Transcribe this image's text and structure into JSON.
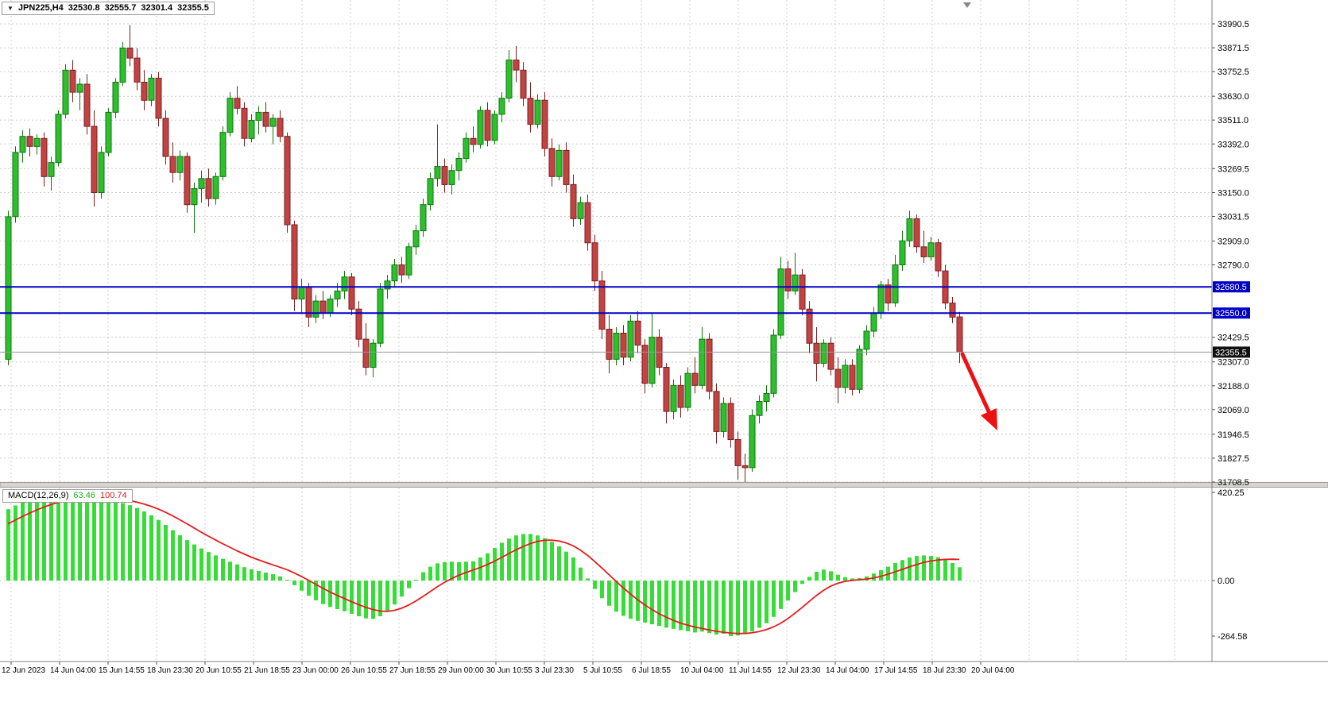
{
  "symbol_info": {
    "expander_icon": "▼",
    "symbol_tf": "JPN225,H4",
    "open": "32530.8",
    "high": "32555.7",
    "low": "32301.4",
    "close": "32355.5"
  },
  "macd_label": {
    "name": "MACD(12,26,9)",
    "main_value": "63.46",
    "signal_value": "100.74"
  },
  "price_axis": {
    "labels": [
      {
        "text": "33990.5",
        "value": 33990.5,
        "style": "normal"
      },
      {
        "text": "33871.5",
        "value": 33871.5,
        "style": "normal"
      },
      {
        "text": "33752.5",
        "value": 33752.5,
        "style": "normal"
      },
      {
        "text": "33630.0",
        "value": 33630.0,
        "style": "normal"
      },
      {
        "text": "33511.0",
        "value": 33511.0,
        "style": "normal"
      },
      {
        "text": "33392.0",
        "value": 33392.0,
        "style": "normal"
      },
      {
        "text": "33269.5",
        "value": 33269.5,
        "style": "normal"
      },
      {
        "text": "33150.0",
        "value": 33150.0,
        "style": "normal"
      },
      {
        "text": "33031.5",
        "value": 33031.5,
        "style": "normal"
      },
      {
        "text": "32909.0",
        "value": 32909.0,
        "style": "normal"
      },
      {
        "text": "32790.0",
        "value": 32790.0,
        "style": "normal"
      },
      {
        "text": "32680.5",
        "value": 32680.5,
        "style": "level"
      },
      {
        "text": "32550.0",
        "value": 32550.0,
        "style": "level"
      },
      {
        "text": "32429.5",
        "value": 32429.5,
        "style": "normal"
      },
      {
        "text": "32307.0",
        "value": 32307.0,
        "style": "normal"
      },
      {
        "text": "32188.0",
        "value": 32188.0,
        "style": "normal"
      },
      {
        "text": "32069.0",
        "value": 32069.0,
        "style": "normal"
      },
      {
        "text": "31946.5",
        "value": 31946.5,
        "style": "normal"
      },
      {
        "text": "31827.5",
        "value": 31827.5,
        "style": "normal"
      },
      {
        "text": "31708.5",
        "value": 31708.5,
        "style": "normal"
      }
    ],
    "bid_tag": {
      "text": "32355.5",
      "value": 32355.5,
      "style": "bid"
    }
  },
  "macd_axis": {
    "labels": [
      {
        "text": "420.25",
        "value": 420.25
      },
      {
        "text": "0.00",
        "value": 0
      },
      {
        "text": "-264.58",
        "value": -264.58
      }
    ]
  },
  "colors": {
    "background": "#ffffff",
    "grid": "#cccccc",
    "up_fill": "#2ebe2e",
    "up_stroke": "#0c780c",
    "down_fill": "#c24343",
    "down_stroke": "#7c1f1f",
    "macd_histogram": "#37dd37",
    "macd_signal": "#e51c1c",
    "level_line": "#0000c8",
    "bid_line": "#9a9a9a",
    "tag_level_bg": "#0000c8",
    "tag_bid_bg": "#111111",
    "arrow": "#ee1111",
    "separator": "#d8d5d0",
    "axis_border": "#808080"
  },
  "chart_data": {
    "type": "candlestick",
    "symbol": "JPN225",
    "timeframe": "H4",
    "title": "JPN225,H4",
    "ylim": [
      31708.5,
      33990.5
    ],
    "grid": true,
    "levels": [
      {
        "name": "resistance",
        "price": 32680.5
      },
      {
        "name": "support",
        "price": 32550.0
      }
    ],
    "current_price": 32355.5,
    "x_labels": [
      "12 Jun 2023",
      "14 Jun 04:00",
      "15 Jun 14:55",
      "18 Jun 23:30",
      "20 Jun 10:55",
      "21 Jun 18:55",
      "23 Jun 00:00",
      "26 Jun 10:55",
      "27 Jun 18:55",
      "29 Jun 00:00",
      "30 Jun 10:55",
      "3 Jul 23:30",
      "5 Jul 10:55",
      "6 Jul 18:55",
      "10 Jul 04:00",
      "11 Jul 14:55",
      "12 Jul 23:30",
      "14 Jul 04:00",
      "17 Jul 14:55",
      "18 Jul 23:30",
      "20 Jul 04:00"
    ],
    "ohlc": [
      [
        32320,
        33060,
        32290,
        33030
      ],
      [
        33030,
        33380,
        33000,
        33350
      ],
      [
        33350,
        33460,
        33300,
        33430
      ],
      [
        33430,
        33470,
        33330,
        33380
      ],
      [
        33380,
        33440,
        33340,
        33420
      ],
      [
        33420,
        33450,
        33180,
        33230
      ],
      [
        33230,
        33330,
        33160,
        33300
      ],
      [
        33300,
        33560,
        33280,
        33540
      ],
      [
        33540,
        33790,
        33520,
        33760
      ],
      [
        33760,
        33810,
        33600,
        33650
      ],
      [
        33650,
        33720,
        33560,
        33690
      ],
      [
        33690,
        33740,
        33440,
        33480
      ],
      [
        33480,
        33560,
        33080,
        33150
      ],
      [
        33150,
        33380,
        33120,
        33350
      ],
      [
        33350,
        33570,
        33330,
        33550
      ],
      [
        33550,
        33720,
        33520,
        33700
      ],
      [
        33700,
        33900,
        33680,
        33870
      ],
      [
        33870,
        33985,
        33780,
        33820
      ],
      [
        33820,
        33870,
        33660,
        33700
      ],
      [
        33700,
        33760,
        33560,
        33610
      ],
      [
        33610,
        33740,
        33580,
        33720
      ],
      [
        33720,
        33750,
        33480,
        33520
      ],
      [
        33520,
        33560,
        33290,
        33330
      ],
      [
        33330,
        33400,
        33200,
        33250
      ],
      [
        33250,
        33360,
        33210,
        33330
      ],
      [
        33330,
        33350,
        33050,
        33090
      ],
      [
        33090,
        33200,
        32950,
        33170
      ],
      [
        33170,
        33260,
        33100,
        33220
      ],
      [
        33220,
        33270,
        33080,
        33120
      ],
      [
        33120,
        33250,
        33090,
        33230
      ],
      [
        33230,
        33480,
        33210,
        33450
      ],
      [
        33450,
        33650,
        33430,
        33620
      ],
      [
        33620,
        33680,
        33540,
        33570
      ],
      [
        33570,
        33600,
        33380,
        33420
      ],
      [
        33420,
        33540,
        33400,
        33510
      ],
      [
        33510,
        33580,
        33440,
        33550
      ],
      [
        33550,
        33600,
        33450,
        33480
      ],
      [
        33480,
        33540,
        33390,
        33520
      ],
      [
        33520,
        33560,
        33400,
        33430
      ],
      [
        33430,
        33450,
        32950,
        32990
      ],
      [
        32990,
        33010,
        32560,
        32620
      ],
      [
        32620,
        32720,
        32550,
        32680
      ],
      [
        32680,
        32700,
        32480,
        32530
      ],
      [
        32530,
        32640,
        32500,
        32610
      ],
      [
        32610,
        32660,
        32520,
        32550
      ],
      [
        32550,
        32640,
        32530,
        32620
      ],
      [
        32620,
        32700,
        32580,
        32660
      ],
      [
        32660,
        32760,
        32620,
        32730
      ],
      [
        32730,
        32750,
        32540,
        32570
      ],
      [
        32570,
        32610,
        32380,
        32420
      ],
      [
        32420,
        32500,
        32240,
        32280
      ],
      [
        32280,
        32420,
        32230,
        32400
      ],
      [
        32400,
        32700,
        32380,
        32670
      ],
      [
        32670,
        32740,
        32620,
        32710
      ],
      [
        32710,
        32820,
        32680,
        32790
      ],
      [
        32790,
        32830,
        32700,
        32740
      ],
      [
        32740,
        32900,
        32720,
        32880
      ],
      [
        32880,
        32990,
        32840,
        32960
      ],
      [
        32960,
        33120,
        32930,
        33090
      ],
      [
        33090,
        33250,
        33060,
        33220
      ],
      [
        33220,
        33490,
        33180,
        33280
      ],
      [
        33280,
        33320,
        33150,
        33190
      ],
      [
        33190,
        33290,
        33140,
        33260
      ],
      [
        33260,
        33350,
        33210,
        33320
      ],
      [
        33320,
        33450,
        33300,
        33420
      ],
      [
        33420,
        33480,
        33350,
        33390
      ],
      [
        33390,
        33580,
        33370,
        33560
      ],
      [
        33560,
        33600,
        33380,
        33410
      ],
      [
        33410,
        33560,
        33390,
        33540
      ],
      [
        33540,
        33650,
        33500,
        33620
      ],
      [
        33620,
        33860,
        33600,
        33810
      ],
      [
        33810,
        33880,
        33700,
        33760
      ],
      [
        33760,
        33800,
        33580,
        33620
      ],
      [
        33620,
        33700,
        33450,
        33490
      ],
      [
        33490,
        33640,
        33470,
        33610
      ],
      [
        33610,
        33650,
        33330,
        33370
      ],
      [
        33370,
        33420,
        33180,
        33230
      ],
      [
        33230,
        33390,
        33210,
        33360
      ],
      [
        33360,
        33400,
        33150,
        33190
      ],
      [
        33190,
        33240,
        32980,
        33020
      ],
      [
        33020,
        33130,
        32990,
        33100
      ],
      [
        33100,
        33140,
        32860,
        32900
      ],
      [
        32900,
        32940,
        32660,
        32710
      ],
      [
        32710,
        32760,
        32420,
        32470
      ],
      [
        32470,
        32540,
        32250,
        32320
      ],
      [
        32320,
        32480,
        32290,
        32450
      ],
      [
        32450,
        32490,
        32290,
        32330
      ],
      [
        32330,
        32540,
        32310,
        32510
      ],
      [
        32510,
        32560,
        32350,
        32390
      ],
      [
        32390,
        32420,
        32150,
        32200
      ],
      [
        32200,
        32550,
        32180,
        32430
      ],
      [
        32430,
        32470,
        32240,
        32280
      ],
      [
        32280,
        32300,
        32000,
        32060
      ],
      [
        32060,
        32220,
        32020,
        32190
      ],
      [
        32190,
        32240,
        32030,
        32080
      ],
      [
        32080,
        32280,
        32060,
        32250
      ],
      [
        32250,
        32330,
        32150,
        32190
      ],
      [
        32190,
        32480,
        32170,
        32420
      ],
      [
        32420,
        32450,
        32120,
        32160
      ],
      [
        32160,
        32200,
        31900,
        31960
      ],
      [
        31960,
        32130,
        31930,
        32100
      ],
      [
        32100,
        32130,
        31880,
        31920
      ],
      [
        31920,
        31960,
        31720,
        31790
      ],
      [
        31790,
        31850,
        31700,
        31780
      ],
      [
        31780,
        32070,
        31760,
        32040
      ],
      [
        32040,
        32140,
        32000,
        32110
      ],
      [
        32110,
        32190,
        32060,
        32150
      ],
      [
        32150,
        32470,
        32130,
        32440
      ],
      [
        32440,
        32830,
        32420,
        32770
      ],
      [
        32770,
        32810,
        32620,
        32660
      ],
      [
        32660,
        32850,
        32640,
        32740
      ],
      [
        32740,
        32770,
        32540,
        32570
      ],
      [
        32570,
        32610,
        32350,
        32400
      ],
      [
        32400,
        32480,
        32210,
        32300
      ],
      [
        32300,
        32420,
        32280,
        32400
      ],
      [
        32400,
        32430,
        32240,
        32270
      ],
      [
        32270,
        32330,
        32100,
        32180
      ],
      [
        32180,
        32320,
        32150,
        32290
      ],
      [
        32290,
        32320,
        32140,
        32170
      ],
      [
        32170,
        32390,
        32150,
        32370
      ],
      [
        32370,
        32490,
        32340,
        32460
      ],
      [
        32460,
        32580,
        32430,
        32550
      ],
      [
        32550,
        32710,
        32520,
        32690
      ],
      [
        32690,
        32720,
        32560,
        32600
      ],
      [
        32600,
        32840,
        32580,
        32790
      ],
      [
        32790,
        32960,
        32760,
        32910
      ],
      [
        32910,
        33060,
        32880,
        33020
      ],
      [
        33020,
        33040,
        32850,
        32880
      ],
      [
        32880,
        32960,
        32800,
        32830
      ],
      [
        32830,
        32930,
        32810,
        32900
      ],
      [
        32900,
        32920,
        32730,
        32760
      ],
      [
        32760,
        32790,
        32570,
        32600
      ],
      [
        32600,
        32630,
        32500,
        32530
      ],
      [
        32530.8,
        32555.7,
        32301.4,
        32355.5
      ]
    ],
    "indicator": {
      "type": "MACD",
      "params": "12,26,9",
      "ylim": [
        -264.58,
        420.25
      ],
      "histogram": [
        340,
        358,
        372,
        385,
        396,
        404,
        410,
        414,
        416,
        414,
        410,
        404,
        396,
        390,
        384,
        377,
        369,
        359,
        346,
        330,
        311,
        289,
        265,
        240,
        216,
        193,
        172,
        153,
        136,
        120,
        104,
        90,
        77,
        64,
        54,
        46,
        38,
        30,
        20,
        4,
        -22,
        -48,
        -72,
        -94,
        -112,
        -126,
        -136,
        -146,
        -158,
        -170,
        -180,
        -182,
        -170,
        -146,
        -114,
        -76,
        -36,
        4,
        40,
        66,
        82,
        88,
        90,
        88,
        90,
        92,
        110,
        130,
        155,
        180,
        200,
        215,
        222,
        222,
        215,
        202,
        185,
        163,
        138,
        110,
        62,
        10,
        -40,
        -84,
        -120,
        -148,
        -168,
        -182,
        -192,
        -200,
        -208,
        -216,
        -224,
        -230,
        -236,
        -241,
        -247,
        -243,
        -250,
        -257,
        -253,
        -264.58,
        -261,
        -255,
        -242,
        -225,
        -203,
        -173,
        -135,
        -95,
        -55,
        -16,
        18,
        42,
        52,
        44,
        28,
        16,
        10,
        12,
        20,
        34,
        50,
        66,
        84,
        98,
        110,
        117,
        120,
        117,
        111,
        101,
        84,
        63.46
      ],
      "signal": [
        270,
        288,
        305,
        321,
        336,
        350,
        362,
        372,
        381,
        388,
        392,
        395,
        396,
        395,
        393,
        390,
        386,
        381,
        374,
        365,
        354,
        341,
        326,
        309,
        290,
        271,
        251,
        231,
        212,
        194,
        176,
        159,
        142,
        127,
        112,
        99,
        87,
        75,
        64,
        52,
        37,
        20,
        2,
        -17,
        -36,
        -54,
        -70,
        -85,
        -100,
        -114,
        -127,
        -138,
        -145,
        -147,
        -142,
        -132,
        -117,
        -98,
        -76,
        -53,
        -30,
        -9,
        9,
        25,
        38,
        50,
        62,
        76,
        92,
        110,
        128,
        146,
        162,
        176,
        186,
        192,
        193,
        189,
        180,
        166,
        146,
        121,
        92,
        61,
        29,
        -3,
        -34,
        -63,
        -90,
        -115,
        -137,
        -157,
        -174,
        -189,
        -202,
        -212,
        -221,
        -228,
        -235,
        -241,
        -246,
        -250,
        -252,
        -252,
        -249,
        -243,
        -234,
        -221,
        -204,
        -182,
        -156,
        -129,
        -100,
        -72,
        -47,
        -27,
        -13,
        -4,
        1,
        4,
        7,
        12,
        20,
        30,
        41,
        53,
        65,
        76,
        86,
        93,
        98,
        101,
        101.5,
        100.74
      ]
    }
  }
}
